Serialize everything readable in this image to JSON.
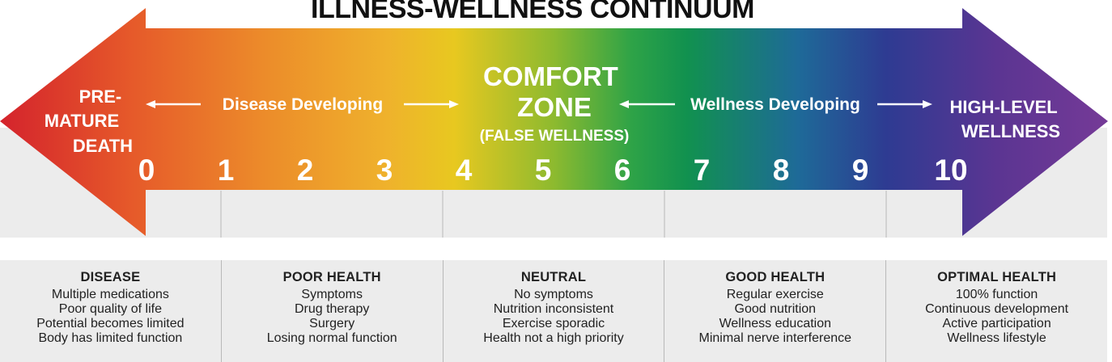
{
  "title": "ILLNESS-WELLNESS CONTINUUM",
  "left_end": {
    "lines": [
      "PRE-",
      "MATURE",
      "DEATH"
    ]
  },
  "right_end": {
    "lines": [
      "HIGH-LEVEL",
      "WELLNESS"
    ]
  },
  "disease_developing": "Disease Developing",
  "wellness_developing": "Wellness Developing",
  "comfort_zone": {
    "line1": "COMFORT",
    "line2": "ZONE",
    "sub": "(FALSE WELLNESS)"
  },
  "scale": [
    "0",
    "1",
    "2",
    "3",
    "4",
    "5",
    "6",
    "7",
    "8",
    "9",
    "10"
  ],
  "gradient_colors": [
    "#d4232c",
    "#e65a2a",
    "#ec8c2a",
    "#efb22c",
    "#e8c820",
    "#8dba2f",
    "#2ea347",
    "#11914f",
    "#1e6a98",
    "#2e3b92",
    "#5b3592",
    "#753a97"
  ],
  "panels": [
    {
      "title": "DISEASE",
      "lines": [
        "Multiple medications",
        "Poor quality of life",
        "Potential becomes limited",
        "Body has limited function"
      ]
    },
    {
      "title": "POOR HEALTH",
      "lines": [
        "Symptoms",
        "Drug therapy",
        "Surgery",
        "Losing normal function"
      ]
    },
    {
      "title": "NEUTRAL",
      "lines": [
        "No symptoms",
        "Nutrition inconsistent",
        "Exercise sporadic",
        "Health not a high priority"
      ]
    },
    {
      "title": "GOOD HEALTH",
      "lines": [
        "Regular exercise",
        "Good nutrition",
        "Wellness education",
        "Minimal nerve interference"
      ]
    },
    {
      "title": "OPTIMAL HEALTH",
      "lines": [
        "100% function",
        "Continuous development",
        "Active participation",
        "Wellness lifestyle"
      ]
    }
  ]
}
